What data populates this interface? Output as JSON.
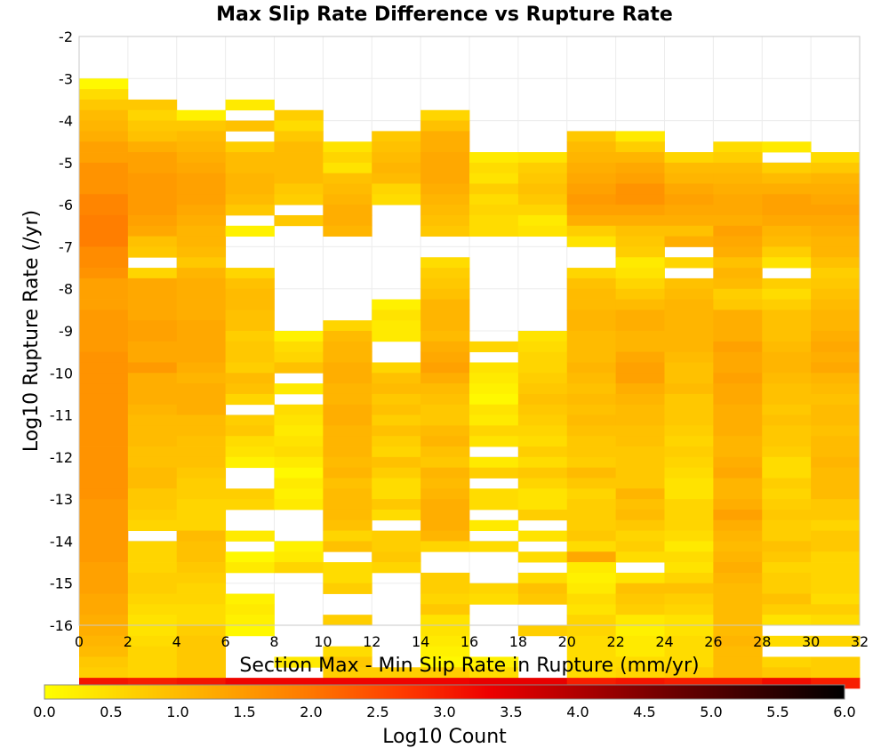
{
  "chart_data": {
    "type": "heatmap",
    "title": "Max Slip Rate Difference vs Rupture Rate",
    "xlabel": "Section Max - Min Slip Rate in Rupture (mm/yr)",
    "ylabel": "Log10 Rupture Rate (/yr)",
    "xlim": [
      0,
      32
    ],
    "ylim": [
      -16,
      -2
    ],
    "x_ticks": [
      "0",
      "2",
      "4",
      "6",
      "8",
      "10",
      "12",
      "14",
      "16",
      "18",
      "20",
      "22",
      "24",
      "26",
      "28",
      "30",
      "32"
    ],
    "y_ticks": [
      "-2",
      "-3",
      "-4",
      "-5",
      "-6",
      "-7",
      "-8",
      "-9",
      "-10",
      "-11",
      "-12",
      "-13",
      "-14",
      "-15",
      "-16"
    ],
    "x_bin_width": 2,
    "y_bin_height": 0.25,
    "y_bin_rows_top_to_bottom": [
      -3.0,
      -16.0
    ],
    "grid": true,
    "colorbar": {
      "label": "Log10 Count",
      "range": [
        0,
        6
      ],
      "ticks": [
        "0.0",
        "0.5",
        "1.0",
        "1.5",
        "2.0",
        "2.5",
        "3.0",
        "3.5",
        "4.0",
        "4.5",
        "5.0",
        "5.5",
        "6.0"
      ],
      "colors": [
        "#ffff00",
        "#ffd000",
        "#ffa600",
        "#ff7700",
        "#ff3c00",
        "#ee0000",
        "#b00000",
        "#700000",
        "#380000",
        "#000000"
      ]
    },
    "columns": [
      {
        "x_start": 0,
        "values": [
          0.1,
          0.5,
          0.8,
          1.0,
          1.1,
          1.2,
          1.4,
          1.4,
          1.6,
          1.6,
          1.6,
          1.8,
          1.8,
          1.9,
          1.9,
          1.9,
          1.7,
          1.7,
          1.6,
          1.4,
          1.4,
          1.4,
          1.5,
          1.5,
          1.5,
          1.5,
          1.6,
          1.6,
          1.6,
          1.6,
          1.6,
          1.6,
          1.6,
          1.6,
          1.6,
          1.6,
          1.6,
          1.6,
          1.6,
          1.6,
          1.5,
          1.5,
          1.5,
          1.5,
          1.5,
          1.5,
          1.4,
          1.4,
          1.4,
          1.3,
          1.3,
          1.2,
          1.2,
          1.1,
          1.0,
          0.8,
          0.7,
          3.1
        ]
      },
      {
        "x_start": 2,
        "values": [
          null,
          null,
          0.8,
          0.6,
          0.8,
          0.9,
          1.2,
          1.4,
          1.4,
          1.5,
          1.5,
          1.5,
          1.5,
          1.4,
          1.3,
          0.9,
          0.8,
          null,
          0.6,
          1.3,
          1.3,
          1.3,
          1.3,
          1.4,
          1.4,
          1.3,
          1.3,
          1.5,
          1.2,
          1.2,
          1.2,
          1.1,
          1.0,
          1.0,
          1.0,
          0.9,
          0.9,
          1.0,
          1.0,
          0.8,
          0.8,
          0.7,
          0.6,
          null,
          0.6,
          0.6,
          0.6,
          0.7,
          0.7,
          0.6,
          0.5,
          0.4,
          0.4,
          0.5,
          0.6,
          0.6,
          0.6,
          3.0
        ]
      },
      {
        "x_start": 4,
        "values": [
          null,
          null,
          null,
          0.2,
          0.8,
          1.0,
          1.1,
          1.2,
          1.3,
          1.4,
          1.4,
          1.4,
          1.3,
          1.2,
          1.1,
          1.1,
          1.0,
          0.8,
          1.1,
          1.2,
          1.2,
          1.2,
          1.2,
          1.3,
          1.3,
          1.3,
          1.3,
          1.2,
          1.1,
          1.2,
          1.2,
          1.2,
          1.0,
          1.0,
          0.9,
          0.9,
          0.9,
          0.8,
          0.7,
          0.7,
          0.6,
          0.6,
          0.6,
          1.0,
          0.9,
          0.9,
          0.8,
          0.7,
          0.6,
          0.6,
          0.5,
          0.5,
          0.7,
          0.8,
          0.8,
          0.8,
          0.8,
          3.1
        ]
      },
      {
        "x_start": 6,
        "values": [
          null,
          null,
          0.3,
          null,
          0.9,
          null,
          0.7,
          1.0,
          1.0,
          1.1,
          1.1,
          1.0,
          0.8,
          null,
          0.2,
          null,
          null,
          null,
          0.6,
          0.9,
          1.0,
          1.0,
          0.9,
          0.9,
          0.7,
          0.8,
          0.8,
          0.7,
          1.0,
          0.9,
          0.6,
          null,
          0.7,
          0.8,
          0.5,
          0.4,
          0.2,
          null,
          null,
          0.7,
          0.6,
          null,
          null,
          0.3,
          null,
          0.1,
          0.3,
          null,
          null,
          0.2,
          0.3,
          0.2,
          0.1,
          null,
          null,
          null,
          null,
          3.3
        ]
      },
      {
        "x_start": 8,
        "values": [
          null,
          null,
          null,
          0.7,
          0.5,
          0.8,
          1.0,
          1.0,
          1.0,
          1.0,
          0.8,
          0.7,
          null,
          0.8,
          null,
          null,
          null,
          null,
          null,
          null,
          null,
          null,
          null,
          null,
          0.2,
          0.5,
          0.6,
          0.9,
          null,
          0.3,
          null,
          0.5,
          0.4,
          0.3,
          0.4,
          0.5,
          0.3,
          0.1,
          0.3,
          0.2,
          0.3,
          null,
          null,
          null,
          0.2,
          0.3,
          0.6,
          null,
          null,
          null,
          null,
          null,
          null,
          null,
          null,
          0.3,
          null,
          3.3
        ]
      },
      {
        "x_start": 10,
        "values": [
          null,
          null,
          null,
          null,
          null,
          null,
          0.4,
          0.6,
          0.4,
          0.9,
          1.0,
          1.1,
          1.2,
          1.2,
          1.1,
          null,
          null,
          null,
          null,
          null,
          null,
          null,
          null,
          0.6,
          1.0,
          1.1,
          1.1,
          1.2,
          1.2,
          1.1,
          1.1,
          1.2,
          1.2,
          1.1,
          1.1,
          1.1,
          1.0,
          1.1,
          0.9,
          1.0,
          1.0,
          1.0,
          0.9,
          0.6,
          0.9,
          null,
          0.5,
          0.5,
          0.7,
          null,
          null,
          0.7,
          null,
          null,
          0.5,
          0.8,
          0.7,
          3.3
        ]
      },
      {
        "x_start": 12,
        "values": [
          null,
          null,
          null,
          null,
          null,
          0.8,
          0.9,
          1.0,
          1.1,
          1.0,
          0.6,
          0.5,
          null,
          null,
          null,
          null,
          null,
          null,
          null,
          null,
          null,
          0.2,
          0.4,
          0.3,
          0.3,
          null,
          null,
          0.6,
          0.9,
          1.0,
          0.8,
          0.9,
          0.7,
          0.9,
          0.7,
          0.6,
          0.9,
          0.7,
          0.5,
          0.5,
          0.8,
          0.5,
          null,
          0.7,
          0.7,
          0.8,
          0.6,
          null,
          null,
          null,
          null,
          null,
          null,
          null,
          null,
          null,
          0.7,
          3.3
        ]
      },
      {
        "x_start": 14,
        "values": [
          null,
          null,
          null,
          0.6,
          0.9,
          1.2,
          1.2,
          1.3,
          1.3,
          1.3,
          1.2,
          1.1,
          1.0,
          0.9,
          0.8,
          null,
          null,
          0.5,
          0.7,
          0.8,
          0.9,
          1.1,
          1.1,
          1.1,
          1.0,
          1.2,
          1.3,
          1.4,
          1.2,
          1.0,
          0.9,
          0.8,
          0.8,
          1.0,
          1.1,
          0.9,
          0.8,
          1.1,
          1.0,
          1.1,
          1.2,
          1.2,
          1.2,
          1.1,
          0.6,
          null,
          null,
          0.7,
          0.7,
          0.6,
          0.8,
          0.4,
          0.4,
          0.3,
          0.2,
          0.1,
          0.7,
          3.3
        ]
      },
      {
        "x_start": 16,
        "values": [
          null,
          null,
          null,
          null,
          null,
          null,
          null,
          0.3,
          0.5,
          0.4,
          0.7,
          0.5,
          0.6,
          0.5,
          0.5,
          null,
          null,
          null,
          null,
          null,
          null,
          null,
          null,
          null,
          null,
          0.6,
          null,
          0.4,
          0.3,
          0.2,
          0.1,
          0.4,
          0.3,
          0.6,
          0.4,
          null,
          0.3,
          0.7,
          null,
          0.5,
          0.5,
          null,
          0.3,
          null,
          0.5,
          null,
          null,
          null,
          0.6,
          0.5,
          null,
          null,
          null,
          null,
          null,
          0.2,
          0.5,
          3.4
        ]
      },
      {
        "x_start": 18,
        "values": [
          null,
          null,
          null,
          null,
          null,
          null,
          null,
          0.4,
          0.7,
          0.8,
          0.9,
          0.8,
          0.6,
          0.3,
          0.4,
          null,
          null,
          null,
          null,
          null,
          null,
          null,
          null,
          null,
          0.4,
          0.5,
          0.6,
          0.6,
          0.7,
          0.8,
          0.9,
          0.8,
          0.7,
          0.6,
          0.5,
          0.7,
          0.5,
          0.8,
          0.6,
          0.4,
          0.4,
          0.7,
          null,
          0.4,
          null,
          0.5,
          null,
          0.5,
          0.9,
          0.8,
          null,
          null,
          0.7,
          null,
          null,
          null,
          null,
          3.4
        ]
      },
      {
        "x_start": 20,
        "values": [
          null,
          null,
          null,
          null,
          null,
          0.8,
          1.0,
          1.1,
          1.2,
          1.3,
          1.4,
          1.5,
          1.4,
          1.2,
          0.7,
          0.4,
          null,
          null,
          0.6,
          0.9,
          1.0,
          1.0,
          1.1,
          1.1,
          1.0,
          1.0,
          1.0,
          1.1,
          1.0,
          0.9,
          1.0,
          0.9,
          1.0,
          0.9,
          0.8,
          0.8,
          0.7,
          1.0,
          0.8,
          0.6,
          0.7,
          0.7,
          0.7,
          0.8,
          0.5,
          1.3,
          0.3,
          0.2,
          0.3,
          0.5,
          0.4,
          0.6,
          0.6,
          0.5,
          0.5,
          0.5,
          0.5,
          3.0
        ]
      },
      {
        "x_start": 22,
        "values": [
          null,
          null,
          null,
          null,
          null,
          0.3,
          0.7,
          1.1,
          1.3,
          1.4,
          1.6,
          1.6,
          1.4,
          1.2,
          0.9,
          0.8,
          0.7,
          0.3,
          0.4,
          0.6,
          0.8,
          1.0,
          1.2,
          1.2,
          1.1,
          1.1,
          1.3,
          1.4,
          1.4,
          1.2,
          1.1,
          1.0,
          1.0,
          0.9,
          0.9,
          0.8,
          0.8,
          0.8,
          0.8,
          1.1,
          0.9,
          1.0,
          0.8,
          0.6,
          0.7,
          0.5,
          null,
          0.4,
          0.9,
          0.8,
          0.7,
          0.3,
          0.2,
          0.3,
          0.3,
          0.5,
          0.6,
          3.1
        ]
      },
      {
        "x_start": 24,
        "values": [
          null,
          null,
          null,
          null,
          null,
          null,
          null,
          0.6,
          1.0,
          1.1,
          1.3,
          1.4,
          1.3,
          1.2,
          0.9,
          1.2,
          null,
          0.6,
          null,
          0.9,
          1.0,
          1.1,
          1.1,
          1.1,
          1.1,
          1.1,
          1.0,
          0.9,
          0.9,
          1.0,
          0.8,
          0.8,
          0.8,
          0.7,
          0.6,
          0.7,
          0.6,
          0.5,
          0.4,
          0.4,
          0.6,
          0.6,
          0.6,
          0.5,
          0.3,
          0.5,
          0.4,
          0.6,
          0.9,
          0.7,
          0.6,
          0.4,
          0.4,
          0.5,
          0.5,
          0.5,
          0.7,
          3.0
        ]
      },
      {
        "x_start": 26,
        "values": [
          null,
          null,
          null,
          null,
          null,
          null,
          0.5,
          0.7,
          1.0,
          1.1,
          1.2,
          1.3,
          1.3,
          1.2,
          1.4,
          1.3,
          1.2,
          0.9,
          1.1,
          1.0,
          0.7,
          0.8,
          1.2,
          1.2,
          1.2,
          1.4,
          1.3,
          1.3,
          1.4,
          1.3,
          1.3,
          1.2,
          1.2,
          1.2,
          1.1,
          1.1,
          1.2,
          1.3,
          1.1,
          1.1,
          1.2,
          1.4,
          1.2,
          1.1,
          1.0,
          1.1,
          1.2,
          1.1,
          1.0,
          1.0,
          1.0,
          1.0,
          1.0,
          1.1,
          1.0,
          1.0,
          1.0,
          3.0
        ]
      },
      {
        "x_start": 28,
        "values": [
          null,
          null,
          null,
          null,
          null,
          null,
          0.3,
          null,
          0.7,
          1.0,
          1.2,
          1.4,
          1.4,
          1.3,
          1.1,
          1.0,
          0.7,
          0.4,
          null,
          0.7,
          0.5,
          0.7,
          0.9,
          0.9,
          0.9,
          1.0,
          1.1,
          1.1,
          1.0,
          0.9,
          0.9,
          0.8,
          0.9,
          0.8,
          0.8,
          0.7,
          0.5,
          0.5,
          0.7,
          0.6,
          0.7,
          0.8,
          0.7,
          0.7,
          0.9,
          0.8,
          0.6,
          0.7,
          0.7,
          0.9,
          0.7,
          0.4,
          null,
          0.5,
          null,
          0.6,
          0.8,
          3.2
        ]
      },
      {
        "x_start": 30,
        "values": [
          null,
          null,
          null,
          null,
          null,
          null,
          null,
          0.5,
          0.8,
          1.1,
          1.2,
          1.3,
          1.4,
          1.3,
          1.2,
          1.1,
          1.1,
          0.9,
          0.7,
          0.8,
          0.9,
          1.0,
          1.1,
          1.1,
          1.2,
          1.3,
          1.2,
          1.3,
          1.1,
          1.0,
          0.9,
          1.0,
          1.0,
          0.9,
          1.0,
          1.0,
          1.1,
          1.0,
          1.0,
          1.0,
          0.8,
          0.8,
          0.6,
          0.8,
          0.8,
          0.6,
          0.6,
          0.6,
          0.6,
          0.5,
          0.7,
          0.5,
          null,
          0.6,
          null,
          0.7,
          0.7,
          3.0
        ]
      }
    ]
  }
}
